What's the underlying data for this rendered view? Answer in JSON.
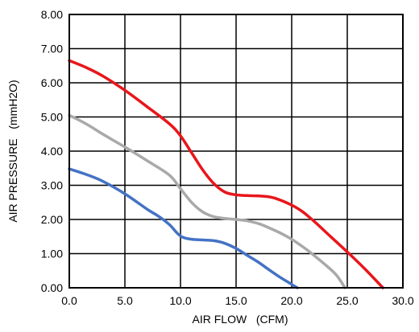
{
  "chart_data": {
    "type": "line",
    "title": "",
    "xlabel": "AIR FLOW   (CFM)",
    "ylabel": "AIR PRESSURE   (mmH2O)",
    "xlim": [
      0,
      30
    ],
    "ylim": [
      0,
      8
    ],
    "x_ticks": [
      "0.0",
      "5.0",
      "10.0",
      "15.0",
      "20.0",
      "25.0",
      "30.0"
    ],
    "y_ticks": [
      "0.00",
      "1.00",
      "2.00",
      "3.00",
      "4.00",
      "5.00",
      "6.00",
      "7.00",
      "8.00"
    ],
    "grid": true,
    "legend": "none",
    "series": [
      {
        "color": "#e8161b",
        "points": [
          [
            0,
            6.65
          ],
          [
            1.5,
            6.45
          ],
          [
            3,
            6.2
          ],
          [
            5,
            5.78
          ],
          [
            7,
            5.3
          ],
          [
            9,
            4.8
          ],
          [
            10,
            4.45
          ],
          [
            11,
            3.95
          ],
          [
            12,
            3.45
          ],
          [
            13,
            3.05
          ],
          [
            14,
            2.8
          ],
          [
            15,
            2.72
          ],
          [
            16,
            2.7
          ],
          [
            17.5,
            2.68
          ],
          [
            18.5,
            2.62
          ],
          [
            20,
            2.42
          ],
          [
            21,
            2.22
          ],
          [
            22,
            1.95
          ],
          [
            23.5,
            1.5
          ],
          [
            25,
            1.05
          ],
          [
            26.5,
            0.58
          ],
          [
            28.2,
            0.0
          ]
        ]
      },
      {
        "color": "#a9a9a9",
        "points": [
          [
            0,
            5.05
          ],
          [
            1.5,
            4.8
          ],
          [
            3,
            4.5
          ],
          [
            5,
            4.12
          ],
          [
            7,
            3.72
          ],
          [
            9,
            3.3
          ],
          [
            10,
            2.9
          ],
          [
            11,
            2.5
          ],
          [
            12,
            2.22
          ],
          [
            13,
            2.08
          ],
          [
            14,
            2.03
          ],
          [
            15,
            2.0
          ],
          [
            16,
            1.96
          ],
          [
            17,
            1.88
          ],
          [
            18,
            1.75
          ],
          [
            19,
            1.6
          ],
          [
            20,
            1.42
          ],
          [
            21,
            1.2
          ],
          [
            22,
            0.95
          ],
          [
            23,
            0.68
          ],
          [
            24,
            0.38
          ],
          [
            24.8,
            0.0
          ]
        ]
      },
      {
        "color": "#4472c4",
        "points": [
          [
            0,
            3.48
          ],
          [
            1.5,
            3.32
          ],
          [
            3,
            3.12
          ],
          [
            5,
            2.75
          ],
          [
            7,
            2.3
          ],
          [
            8,
            2.1
          ],
          [
            9,
            1.85
          ],
          [
            9.7,
            1.6
          ],
          [
            10.2,
            1.48
          ],
          [
            11,
            1.42
          ],
          [
            12,
            1.4
          ],
          [
            13,
            1.38
          ],
          [
            14,
            1.3
          ],
          [
            15,
            1.15
          ],
          [
            16,
            0.95
          ],
          [
            17,
            0.75
          ],
          [
            18,
            0.52
          ],
          [
            19,
            0.3
          ],
          [
            20,
            0.1
          ],
          [
            20.5,
            0.0
          ]
        ]
      }
    ]
  }
}
